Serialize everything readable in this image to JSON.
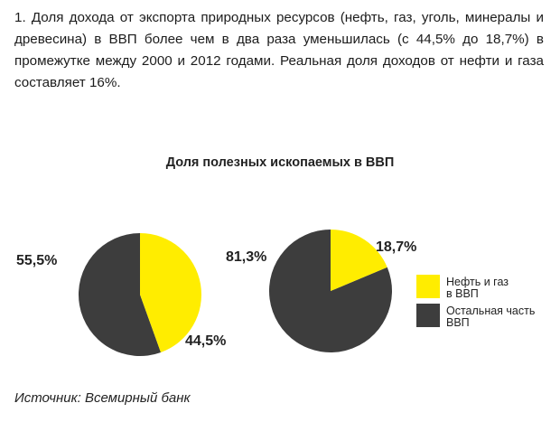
{
  "paragraph": "1. Доля дохода от экспорта природных ресурсов (нефть, газ, уголь, минералы и древесина) в ВВП более чем в два раза уменьшилась (с 44,5% до 18,7%) в промежутке между 2000 и 2012 годами. Реальная доля доходов от нефти и газа составляет 16%.",
  "source": "Источник: Всемирный банк",
  "colors": {
    "oil_gas": "#ffed00",
    "rest": "#3d3d3d"
  },
  "chart_data": {
    "type": "pie",
    "title": "Доля полезных ископаемых в ВВП",
    "legend_position": "right",
    "legend": [
      {
        "label_line1": "Нефть и газ",
        "label_line2": "в ВВП"
      },
      {
        "label_line1": "Остальная часть",
        "label_line2": "ВВП"
      }
    ],
    "pies": [
      {
        "slices": [
          {
            "series": 0,
            "value": 44.5,
            "label": "44,5%"
          },
          {
            "series": 1,
            "value": 55.5,
            "label": "55,5%"
          }
        ]
      },
      {
        "slices": [
          {
            "series": 0,
            "value": 18.7,
            "label": "18,7%"
          },
          {
            "series": 1,
            "value": 81.3,
            "label": "81,3%"
          }
        ]
      }
    ]
  }
}
